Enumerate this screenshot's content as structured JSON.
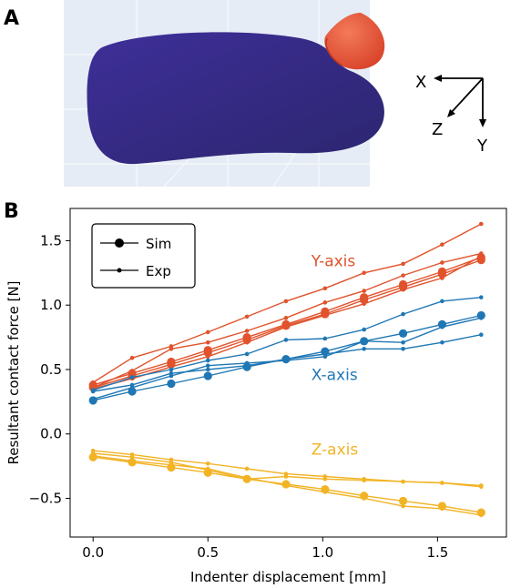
{
  "panels": {
    "a_label": "A",
    "b_label": "B"
  },
  "axes_glyph": {
    "x_label": "X",
    "y_label": "Y",
    "z_label": "Z"
  },
  "colors": {
    "y_axis": "#e0532c",
    "x_axis": "#1f77b4",
    "z_axis": "#f2b325",
    "finger_body": "#3b2d8f",
    "indenter": "#e8553a",
    "render_background": "#e6ecf5"
  },
  "chart_data": {
    "type": "line",
    "xlabel": "Indenter displacement [mm]",
    "ylabel": "Resultant contact force [N]",
    "xlim": [
      -0.1,
      1.8
    ],
    "ylim": [
      -0.8,
      1.75
    ],
    "xticks": [
      "0.0",
      "0.5",
      "1.0",
      "1.5"
    ],
    "xtick_values": [
      0.0,
      0.5,
      1.0,
      1.5
    ],
    "yticks": [
      "−0.5",
      "0.0",
      "0.5",
      "1.0",
      "1.5"
    ],
    "ytick_values": [
      -0.5,
      0.0,
      0.5,
      1.0,
      1.5
    ],
    "legend": {
      "placement": "top-left",
      "entries": [
        {
          "label": "Sim",
          "marker": "large"
        },
        {
          "label": "Exp",
          "marker": "small"
        }
      ]
    },
    "annotations": [
      {
        "text": "Y-axis",
        "group": "y_axis"
      },
      {
        "text": "X-axis",
        "group": "x_axis"
      },
      {
        "text": "Z-axis",
        "group": "z_axis"
      }
    ],
    "x": [
      0.0,
      0.17,
      0.34,
      0.5,
      0.67,
      0.84,
      1.01,
      1.18,
      1.35,
      1.52,
      1.69
    ],
    "series": [
      {
        "group": "y_axis",
        "kind": "sim",
        "values": [
          0.38,
          0.47,
          0.56,
          0.65,
          0.75,
          0.85,
          0.95,
          1.06,
          1.16,
          1.26,
          1.37
        ]
      },
      {
        "group": "y_axis",
        "kind": "sim",
        "values": [
          0.36,
          0.45,
          0.54,
          0.63,
          0.73,
          0.84,
          0.93,
          1.04,
          1.14,
          1.24,
          1.35
        ]
      },
      {
        "group": "y_axis",
        "kind": "exp",
        "values": [
          0.4,
          0.59,
          0.68,
          0.79,
          0.91,
          1.03,
          1.13,
          1.25,
          1.32,
          1.47,
          1.63
        ]
      },
      {
        "group": "y_axis",
        "kind": "exp",
        "values": [
          0.36,
          0.49,
          0.66,
          0.71,
          0.8,
          0.9,
          1.02,
          1.11,
          1.23,
          1.33,
          1.4
        ]
      },
      {
        "group": "y_axis",
        "kind": "exp",
        "values": [
          0.35,
          0.43,
          0.52,
          0.6,
          0.71,
          0.83,
          0.92,
          1.01,
          1.12,
          1.21,
          1.38
        ]
      },
      {
        "group": "x_axis",
        "kind": "sim",
        "values": [
          0.26,
          0.33,
          0.39,
          0.45,
          0.52,
          0.58,
          0.64,
          0.72,
          0.78,
          0.85,
          0.92
        ]
      },
      {
        "group": "x_axis",
        "kind": "exp",
        "values": [
          0.34,
          0.44,
          0.5,
          0.57,
          0.62,
          0.73,
          0.74,
          0.81,
          0.93,
          1.03,
          1.06
        ]
      },
      {
        "group": "x_axis",
        "kind": "exp",
        "values": [
          0.27,
          0.36,
          0.45,
          0.53,
          0.55,
          0.57,
          0.6,
          0.72,
          0.71,
          0.83,
          0.9
        ]
      },
      {
        "group": "x_axis",
        "kind": "exp",
        "values": [
          0.33,
          0.38,
          0.47,
          0.5,
          0.53,
          0.58,
          0.62,
          0.66,
          0.66,
          0.71,
          0.77
        ]
      },
      {
        "group": "z_axis",
        "kind": "sim",
        "values": [
          -0.18,
          -0.22,
          -0.26,
          -0.3,
          -0.35,
          -0.39,
          -0.43,
          -0.48,
          -0.52,
          -0.56,
          -0.61
        ]
      },
      {
        "group": "z_axis",
        "kind": "exp",
        "values": [
          -0.13,
          -0.16,
          -0.2,
          -0.23,
          -0.27,
          -0.31,
          -0.33,
          -0.35,
          -0.37,
          -0.38,
          -0.4
        ]
      },
      {
        "group": "z_axis",
        "kind": "exp",
        "values": [
          -0.15,
          -0.18,
          -0.22,
          -0.28,
          -0.35,
          -0.33,
          -0.35,
          -0.36,
          -0.37,
          -0.38,
          -0.41
        ]
      },
      {
        "group": "z_axis",
        "kind": "exp",
        "values": [
          -0.17,
          -0.21,
          -0.24,
          -0.27,
          -0.34,
          -0.4,
          -0.45,
          -0.5,
          -0.56,
          -0.58,
          -0.63
        ]
      }
    ]
  }
}
